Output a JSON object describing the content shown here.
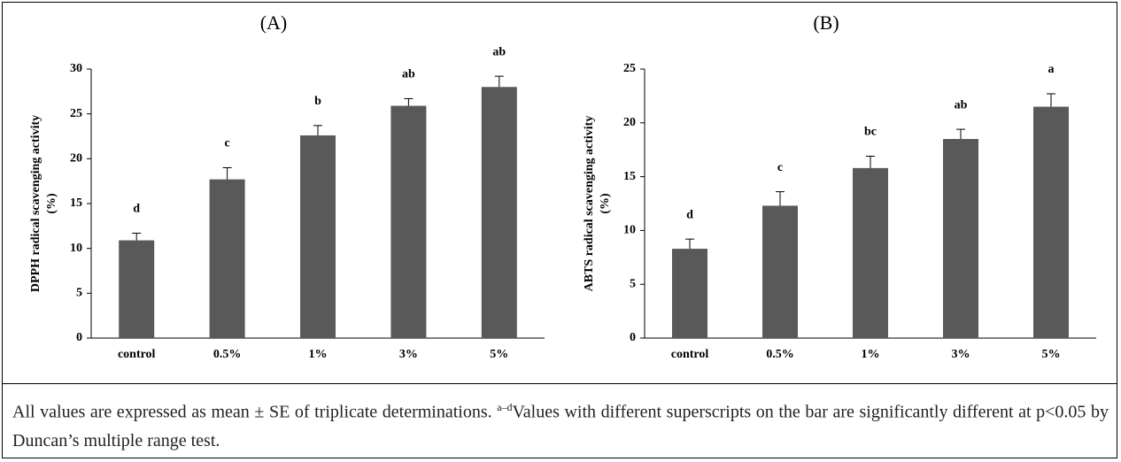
{
  "chart_data": [
    {
      "type": "bar",
      "title": "(A)",
      "ylabel": [
        "DPPH radical scavenging activity",
        "(%)"
      ],
      "categories": [
        "control",
        "0.5%",
        "1%",
        "3%",
        "5%"
      ],
      "values": [
        10.9,
        17.7,
        22.6,
        25.9,
        28.0
      ],
      "errors": [
        0.8,
        1.3,
        1.1,
        0.8,
        1.2
      ],
      "letters": [
        "d",
        "c",
        "b",
        "ab",
        "ab"
      ],
      "color": "#595959",
      "ylim": [
        0,
        30
      ],
      "yticks": [
        0,
        5,
        10,
        15,
        20,
        25,
        30
      ]
    },
    {
      "type": "bar",
      "title": "(B)",
      "ylabel": [
        "ABTS radical scavenging activity",
        "(%)"
      ],
      "categories": [
        "control",
        "0.5%",
        "1%",
        "3%",
        "5%"
      ],
      "values": [
        8.3,
        12.3,
        15.8,
        18.5,
        21.5
      ],
      "errors": [
        0.9,
        1.3,
        1.1,
        0.9,
        1.2
      ],
      "letters": [
        "d",
        "c",
        "bc",
        "ab",
        "a"
      ],
      "color": "#595959",
      "ylim": [
        0,
        25
      ],
      "yticks": [
        0,
        5,
        10,
        15,
        20,
        25
      ]
    }
  ],
  "caption": {
    "part1": "All values are expressed as mean ± SE of triplicate determinations. ",
    "superscript": "a–d",
    "part2": "Values with different superscripts on the bar are significantly different at p<0.05 by Duncan’s multiple range test."
  }
}
